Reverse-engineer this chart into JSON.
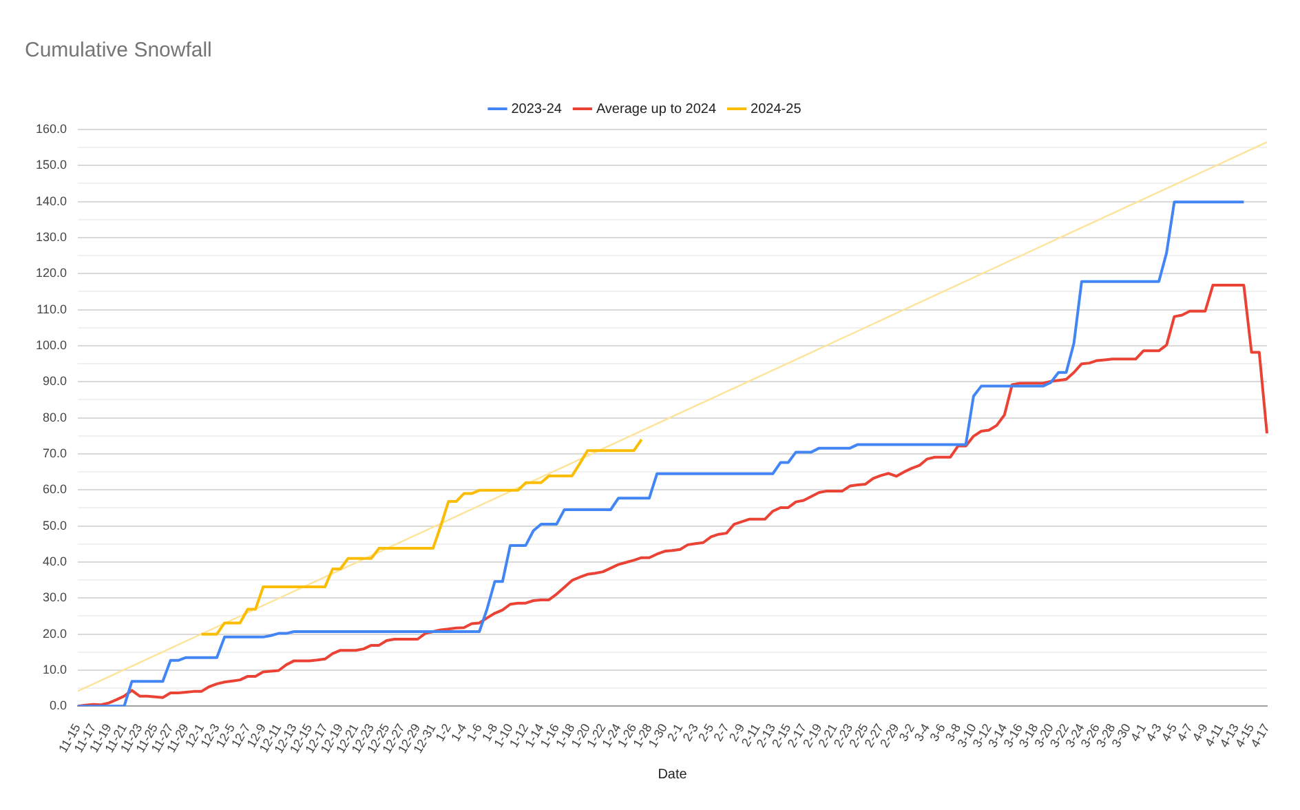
{
  "chart_data": {
    "type": "line",
    "title": "Cumulative Snowfall",
    "xlabel": "Date",
    "legend": "top",
    "grid": "y",
    "marker": "none",
    "line_style": "solid",
    "categories": [
      "11-15",
      null,
      "11-17",
      null,
      "11-19",
      null,
      "11-21",
      null,
      "11-23",
      null,
      "11-25",
      null,
      "11-27",
      null,
      "11-29",
      null,
      "12-1",
      null,
      "12-3",
      null,
      "12-5",
      null,
      "12-7",
      null,
      "12-9",
      null,
      "12-11",
      null,
      "12-13",
      null,
      "12-15",
      null,
      "12-17",
      null,
      "12-19",
      null,
      "12-21",
      null,
      "12-23",
      null,
      "12-25",
      null,
      "12-27",
      null,
      "12-29",
      null,
      "12-31",
      null,
      "1-2",
      null,
      "1-4",
      null,
      "1-6",
      null,
      "1-8",
      null,
      "1-10",
      null,
      "1-12",
      null,
      "1-14",
      null,
      "1-16",
      null,
      "1-18",
      null,
      "1-20",
      null,
      "1-22",
      null,
      "1-24",
      null,
      "1-26",
      null,
      "1-28",
      null,
      "1-30",
      null,
      "2-1",
      null,
      "2-3",
      null,
      "2-5",
      null,
      "2-7",
      null,
      "2-9",
      null,
      "2-11",
      null,
      "2-13",
      null,
      "2-15",
      null,
      "2-17",
      null,
      "2-19",
      null,
      "2-21",
      null,
      "2-23",
      null,
      "2-25",
      null,
      "2-27",
      null,
      "2-29",
      null,
      "3-2",
      null,
      "3-4",
      null,
      "3-6",
      null,
      "3-8",
      null,
      "3-10",
      null,
      "3-12",
      null,
      "3-14",
      null,
      "3-16",
      null,
      "3-18",
      null,
      "3-20",
      null,
      "3-22",
      null,
      "3-24",
      null,
      "3-26",
      null,
      "3-28",
      null,
      "3-30",
      null,
      "4-1",
      null,
      "4-3",
      null,
      "4-5",
      null,
      "4-7",
      null,
      "4-9",
      null,
      "4-11",
      null,
      "4-13",
      null,
      "4-15",
      null,
      "4-17"
    ],
    "ylim": [
      0,
      160
    ],
    "yticks": [
      {
        "value": 0,
        "label": "0.0"
      },
      {
        "value": 5,
        "label": null
      },
      {
        "value": 10,
        "label": "10.0"
      },
      {
        "value": 15,
        "label": null
      },
      {
        "value": 20,
        "label": "20.0"
      },
      {
        "value": 25,
        "label": null
      },
      {
        "value": 30,
        "label": "30.0"
      },
      {
        "value": 35,
        "label": null
      },
      {
        "value": 40,
        "label": "40.0"
      },
      {
        "value": 45,
        "label": null
      },
      {
        "value": 50,
        "label": "50.0"
      },
      {
        "value": 55,
        "label": null
      },
      {
        "value": 60,
        "label": "60.0"
      },
      {
        "value": 65,
        "label": null
      },
      {
        "value": 70,
        "label": "70.0"
      },
      {
        "value": 75,
        "label": null
      },
      {
        "value": 80,
        "label": "80.0"
      },
      {
        "value": 85,
        "label": null
      },
      {
        "value": 90,
        "label": "90.0"
      },
      {
        "value": 95,
        "label": null
      },
      {
        "value": 100,
        "label": "100.0"
      },
      {
        "value": 105,
        "label": null
      },
      {
        "value": 110,
        "label": "110.0"
      },
      {
        "value": 115,
        "label": null
      },
      {
        "value": 120,
        "label": "120.0"
      },
      {
        "value": 125,
        "label": null
      },
      {
        "value": 130,
        "label": "130.0"
      },
      {
        "value": 135,
        "label": null
      },
      {
        "value": 140,
        "label": "140.0"
      },
      {
        "value": 145,
        "label": null
      },
      {
        "value": 150,
        "label": "150.0"
      },
      {
        "value": 155,
        "label": null
      },
      {
        "value": 160,
        "label": "160.0"
      }
    ],
    "series": [
      {
        "name": "2023-24",
        "color": "#4285f4",
        "values": [
          0,
          0,
          0,
          0,
          0,
          0,
          0,
          6.9,
          6.9,
          6.9,
          6.9,
          6.9,
          12.7,
          12.7,
          13.5,
          13.5,
          13.5,
          13.5,
          13.5,
          19.2,
          19.2,
          19.2,
          19.2,
          19.2,
          19.2,
          19.6,
          20.2,
          20.2,
          20.7,
          20.7,
          20.7,
          20.7,
          20.7,
          20.7,
          20.7,
          20.7,
          20.7,
          20.7,
          20.7,
          20.7,
          20.7,
          20.7,
          20.7,
          20.7,
          20.7,
          20.7,
          20.7,
          20.7,
          20.7,
          20.7,
          20.7,
          20.7,
          20.7,
          27.0,
          34.6,
          34.6,
          44.6,
          44.6,
          44.6,
          48.7,
          50.5,
          50.5,
          50.5,
          54.5,
          54.5,
          54.5,
          54.5,
          54.5,
          54.5,
          54.5,
          57.7,
          57.7,
          57.7,
          57.7,
          57.7,
          64.5,
          64.5,
          64.5,
          64.5,
          64.5,
          64.5,
          64.5,
          64.5,
          64.5,
          64.5,
          64.5,
          64.5,
          64.5,
          64.5,
          64.5,
          64.5,
          67.6,
          67.6,
          70.5,
          70.5,
          70.5,
          71.6,
          71.6,
          71.6,
          71.6,
          71.6,
          72.6,
          72.6,
          72.6,
          72.6,
          72.6,
          72.6,
          72.6,
          72.6,
          72.6,
          72.6,
          72.6,
          72.6,
          72.6,
          72.6,
          72.6,
          86,
          88.8,
          88.8,
          88.8,
          88.8,
          88.8,
          88.8,
          88.8,
          88.8,
          88.8,
          89.8,
          92.6,
          92.6,
          100.7,
          117.8,
          117.8,
          117.8,
          117.8,
          117.8,
          117.8,
          117.8,
          117.8,
          117.8,
          117.8,
          117.8,
          125.8,
          139.9,
          139.9,
          139.9,
          139.9,
          139.9,
          139.9,
          139.9,
          139.9,
          139.9,
          139.9,
          null,
          null,
          null
        ]
      },
      {
        "name": "Average up to 2024",
        "color": "#ea4335",
        "values": [
          0,
          0.3,
          0.5,
          0.4,
          0.9,
          1.8,
          2.8,
          4.4,
          2.8,
          2.8,
          2.6,
          2.4,
          3.7,
          3.7,
          3.9,
          4.1,
          4.1,
          5.4,
          6.2,
          6.7,
          7.0,
          7.3,
          8.3,
          8.3,
          9.5,
          9.7,
          9.9,
          11.5,
          12.6,
          12.6,
          12.6,
          12.8,
          13.1,
          14.6,
          15.5,
          15.5,
          15.5,
          15.9,
          16.9,
          16.9,
          18.2,
          18.6,
          18.6,
          18.6,
          18.6,
          20.2,
          20.7,
          21.2,
          21.4,
          21.7,
          21.8,
          22.9,
          23.1,
          24.5,
          25.8,
          26.7,
          28.3,
          28.6,
          28.6,
          29.3,
          29.5,
          29.5,
          31.1,
          33.0,
          34.9,
          35.8,
          36.6,
          36.9,
          37.3,
          38.3,
          39.3,
          39.9,
          40.5,
          41.2,
          41.2,
          42.2,
          43.0,
          43.2,
          43.5,
          44.8,
          45.1,
          45.4,
          47.0,
          47.7,
          48.0,
          50.5,
          51.2,
          51.9,
          51.9,
          51.9,
          54.1,
          55.1,
          55.1,
          56.7,
          57.1,
          58.2,
          59.3,
          59.7,
          59.7,
          59.7,
          61.1,
          61.4,
          61.6,
          63.2,
          64.0,
          64.6,
          63.8,
          65.0,
          66.0,
          66.8,
          68.6,
          69.1,
          69.1,
          69.1,
          72.2,
          72.2,
          74.9,
          76.3,
          76.6,
          77.9,
          80.8,
          89.2,
          89.6,
          89.6,
          89.6,
          89.6,
          90.1,
          90.4,
          90.7,
          92.6,
          95.0,
          95.2,
          95.9,
          96.1,
          96.3,
          96.3,
          96.3,
          96.3,
          98.6,
          98.6,
          98.6,
          100.2,
          108.1,
          108.5,
          109.6,
          109.6,
          109.6,
          116.8,
          116.8,
          116.8,
          116.8,
          116.8,
          98.2,
          98.2,
          75.7
        ]
      },
      {
        "name": "2024-25",
        "color": "#fbbc04",
        "values": [
          null,
          null,
          null,
          null,
          null,
          null,
          null,
          null,
          null,
          null,
          null,
          null,
          null,
          null,
          null,
          null,
          20,
          20,
          20,
          23.1,
          23.1,
          23.1,
          26.9,
          26.9,
          33.1,
          33.1,
          33.1,
          33.1,
          33.1,
          33.1,
          33.1,
          33.1,
          33.1,
          38.1,
          38.1,
          41,
          41,
          41,
          41,
          43.8,
          43.8,
          43.8,
          43.8,
          43.8,
          43.8,
          43.8,
          43.8,
          50,
          56.8,
          56.8,
          59,
          59,
          59.9,
          59.9,
          59.9,
          59.9,
          59.9,
          59.9,
          62,
          62,
          62,
          63.9,
          63.9,
          63.9,
          63.9,
          67.3,
          70.9,
          70.9,
          70.9,
          70.9,
          70.9,
          70.9,
          70.9,
          74,
          null,
          null,
          null,
          null,
          null,
          null,
          null,
          null,
          null,
          null,
          null,
          null,
          null,
          null,
          null,
          null,
          null,
          null,
          null,
          null,
          null,
          null,
          null,
          null,
          null,
          null,
          null,
          null,
          null,
          null,
          null,
          null,
          null,
          null,
          null,
          null,
          null,
          null,
          null,
          null,
          null,
          null,
          null,
          null,
          null,
          null,
          null,
          null,
          null,
          null,
          null,
          null,
          null,
          null,
          null,
          null,
          null,
          null,
          null,
          null,
          null,
          null,
          null,
          null,
          null,
          null,
          null,
          null,
          null,
          null,
          null,
          null,
          null,
          null,
          null,
          null,
          null,
          null,
          null,
          null,
          null
        ]
      },
      {
        "color": "#fde49b",
        "values": [
          4.2,
          null,
          null,
          null,
          null,
          null,
          null,
          null,
          null,
          null,
          null,
          null,
          null,
          null,
          null,
          null,
          null,
          null,
          null,
          null,
          null,
          null,
          null,
          null,
          null,
          null,
          null,
          null,
          null,
          null,
          null,
          null,
          null,
          null,
          null,
          null,
          null,
          null,
          null,
          null,
          null,
          null,
          null,
          null,
          null,
          null,
          null,
          null,
          null,
          null,
          null,
          null,
          null,
          null,
          null,
          null,
          null,
          null,
          null,
          null,
          null,
          null,
          null,
          null,
          null,
          null,
          null,
          null,
          null,
          null,
          null,
          null,
          null,
          null,
          null,
          null,
          null,
          null,
          null,
          null,
          null,
          null,
          null,
          null,
          null,
          null,
          null,
          null,
          null,
          null,
          null,
          null,
          null,
          null,
          null,
          null,
          null,
          null,
          null,
          null,
          null,
          null,
          null,
          null,
          null,
          null,
          null,
          null,
          null,
          null,
          null,
          null,
          null,
          null,
          null,
          null,
          null,
          null,
          null,
          null,
          null,
          null,
          null,
          null,
          null,
          null,
          null,
          null,
          null,
          null,
          null,
          null,
          null,
          null,
          null,
          null,
          null,
          null,
          null,
          null,
          null,
          null,
          null,
          null,
          null,
          null,
          null,
          null,
          null,
          null,
          null,
          null,
          null,
          null,
          156.5
        ]
      }
    ]
  }
}
